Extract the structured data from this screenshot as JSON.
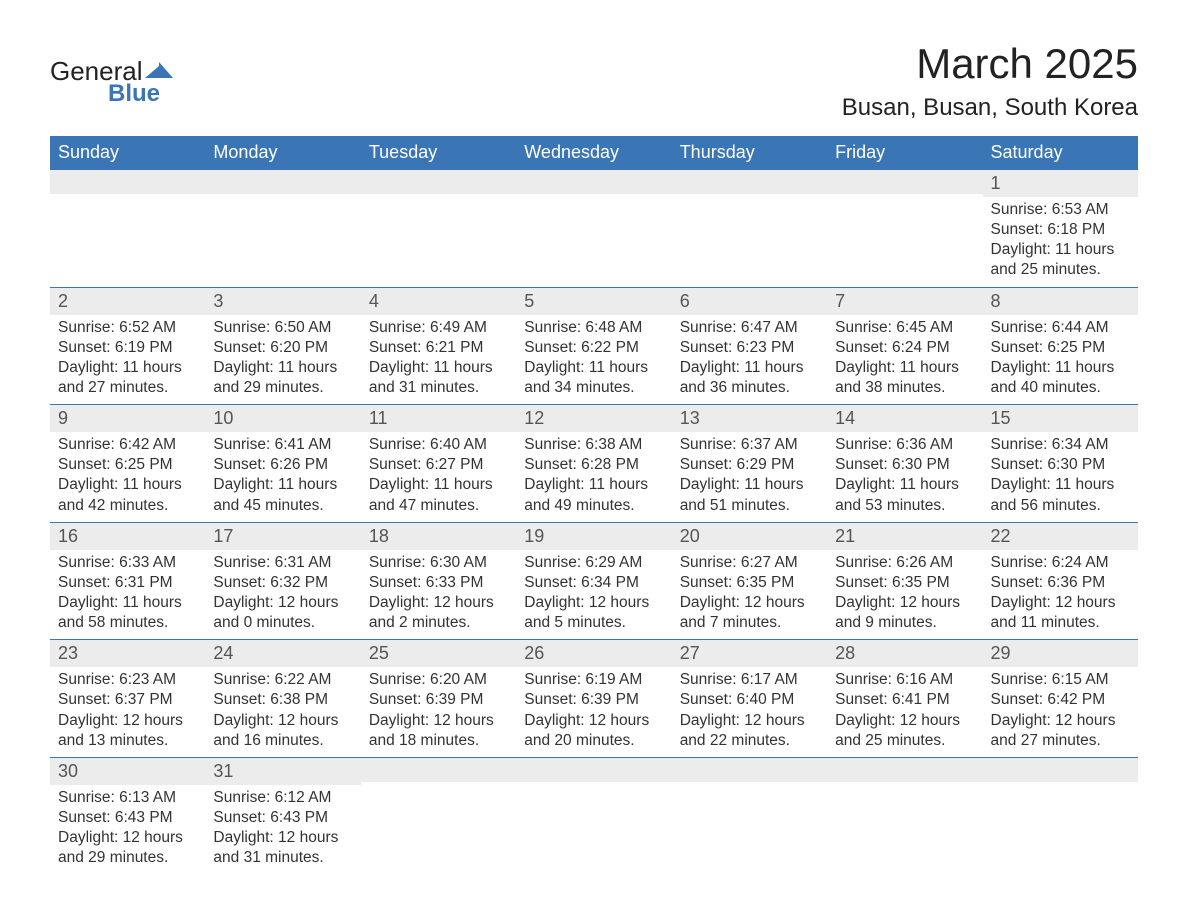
{
  "logo": {
    "general": "General",
    "blue": "Blue",
    "flag_color": "#3a76b5"
  },
  "title": "March 2025",
  "location": "Busan, Busan, South Korea",
  "colors": {
    "header_bg": "#3a76b5",
    "header_text": "#ffffff",
    "daynum_bg": "#ececec",
    "text": "#333333",
    "border": "#3a76b5"
  },
  "days_of_week": [
    "Sunday",
    "Monday",
    "Tuesday",
    "Wednesday",
    "Thursday",
    "Friday",
    "Saturday"
  ],
  "weeks": [
    [
      null,
      null,
      null,
      null,
      null,
      null,
      {
        "n": "1",
        "sunrise": "Sunrise: 6:53 AM",
        "sunset": "Sunset: 6:18 PM",
        "daylight": "Daylight: 11 hours and 25 minutes."
      }
    ],
    [
      {
        "n": "2",
        "sunrise": "Sunrise: 6:52 AM",
        "sunset": "Sunset: 6:19 PM",
        "daylight": "Daylight: 11 hours and 27 minutes."
      },
      {
        "n": "3",
        "sunrise": "Sunrise: 6:50 AM",
        "sunset": "Sunset: 6:20 PM",
        "daylight": "Daylight: 11 hours and 29 minutes."
      },
      {
        "n": "4",
        "sunrise": "Sunrise: 6:49 AM",
        "sunset": "Sunset: 6:21 PM",
        "daylight": "Daylight: 11 hours and 31 minutes."
      },
      {
        "n": "5",
        "sunrise": "Sunrise: 6:48 AM",
        "sunset": "Sunset: 6:22 PM",
        "daylight": "Daylight: 11 hours and 34 minutes."
      },
      {
        "n": "6",
        "sunrise": "Sunrise: 6:47 AM",
        "sunset": "Sunset: 6:23 PM",
        "daylight": "Daylight: 11 hours and 36 minutes."
      },
      {
        "n": "7",
        "sunrise": "Sunrise: 6:45 AM",
        "sunset": "Sunset: 6:24 PM",
        "daylight": "Daylight: 11 hours and 38 minutes."
      },
      {
        "n": "8",
        "sunrise": "Sunrise: 6:44 AM",
        "sunset": "Sunset: 6:25 PM",
        "daylight": "Daylight: 11 hours and 40 minutes."
      }
    ],
    [
      {
        "n": "9",
        "sunrise": "Sunrise: 6:42 AM",
        "sunset": "Sunset: 6:25 PM",
        "daylight": "Daylight: 11 hours and 42 minutes."
      },
      {
        "n": "10",
        "sunrise": "Sunrise: 6:41 AM",
        "sunset": "Sunset: 6:26 PM",
        "daylight": "Daylight: 11 hours and 45 minutes."
      },
      {
        "n": "11",
        "sunrise": "Sunrise: 6:40 AM",
        "sunset": "Sunset: 6:27 PM",
        "daylight": "Daylight: 11 hours and 47 minutes."
      },
      {
        "n": "12",
        "sunrise": "Sunrise: 6:38 AM",
        "sunset": "Sunset: 6:28 PM",
        "daylight": "Daylight: 11 hours and 49 minutes."
      },
      {
        "n": "13",
        "sunrise": "Sunrise: 6:37 AM",
        "sunset": "Sunset: 6:29 PM",
        "daylight": "Daylight: 11 hours and 51 minutes."
      },
      {
        "n": "14",
        "sunrise": "Sunrise: 6:36 AM",
        "sunset": "Sunset: 6:30 PM",
        "daylight": "Daylight: 11 hours and 53 minutes."
      },
      {
        "n": "15",
        "sunrise": "Sunrise: 6:34 AM",
        "sunset": "Sunset: 6:30 PM",
        "daylight": "Daylight: 11 hours and 56 minutes."
      }
    ],
    [
      {
        "n": "16",
        "sunrise": "Sunrise: 6:33 AM",
        "sunset": "Sunset: 6:31 PM",
        "daylight": "Daylight: 11 hours and 58 minutes."
      },
      {
        "n": "17",
        "sunrise": "Sunrise: 6:31 AM",
        "sunset": "Sunset: 6:32 PM",
        "daylight": "Daylight: 12 hours and 0 minutes."
      },
      {
        "n": "18",
        "sunrise": "Sunrise: 6:30 AM",
        "sunset": "Sunset: 6:33 PM",
        "daylight": "Daylight: 12 hours and 2 minutes."
      },
      {
        "n": "19",
        "sunrise": "Sunrise: 6:29 AM",
        "sunset": "Sunset: 6:34 PM",
        "daylight": "Daylight: 12 hours and 5 minutes."
      },
      {
        "n": "20",
        "sunrise": "Sunrise: 6:27 AM",
        "sunset": "Sunset: 6:35 PM",
        "daylight": "Daylight: 12 hours and 7 minutes."
      },
      {
        "n": "21",
        "sunrise": "Sunrise: 6:26 AM",
        "sunset": "Sunset: 6:35 PM",
        "daylight": "Daylight: 12 hours and 9 minutes."
      },
      {
        "n": "22",
        "sunrise": "Sunrise: 6:24 AM",
        "sunset": "Sunset: 6:36 PM",
        "daylight": "Daylight: 12 hours and 11 minutes."
      }
    ],
    [
      {
        "n": "23",
        "sunrise": "Sunrise: 6:23 AM",
        "sunset": "Sunset: 6:37 PM",
        "daylight": "Daylight: 12 hours and 13 minutes."
      },
      {
        "n": "24",
        "sunrise": "Sunrise: 6:22 AM",
        "sunset": "Sunset: 6:38 PM",
        "daylight": "Daylight: 12 hours and 16 minutes."
      },
      {
        "n": "25",
        "sunrise": "Sunrise: 6:20 AM",
        "sunset": "Sunset: 6:39 PM",
        "daylight": "Daylight: 12 hours and 18 minutes."
      },
      {
        "n": "26",
        "sunrise": "Sunrise: 6:19 AM",
        "sunset": "Sunset: 6:39 PM",
        "daylight": "Daylight: 12 hours and 20 minutes."
      },
      {
        "n": "27",
        "sunrise": "Sunrise: 6:17 AM",
        "sunset": "Sunset: 6:40 PM",
        "daylight": "Daylight: 12 hours and 22 minutes."
      },
      {
        "n": "28",
        "sunrise": "Sunrise: 6:16 AM",
        "sunset": "Sunset: 6:41 PM",
        "daylight": "Daylight: 12 hours and 25 minutes."
      },
      {
        "n": "29",
        "sunrise": "Sunrise: 6:15 AM",
        "sunset": "Sunset: 6:42 PM",
        "daylight": "Daylight: 12 hours and 27 minutes."
      }
    ],
    [
      {
        "n": "30",
        "sunrise": "Sunrise: 6:13 AM",
        "sunset": "Sunset: 6:43 PM",
        "daylight": "Daylight: 12 hours and 29 minutes."
      },
      {
        "n": "31",
        "sunrise": "Sunrise: 6:12 AM",
        "sunset": "Sunset: 6:43 PM",
        "daylight": "Daylight: 12 hours and 31 minutes."
      },
      null,
      null,
      null,
      null,
      null
    ]
  ]
}
